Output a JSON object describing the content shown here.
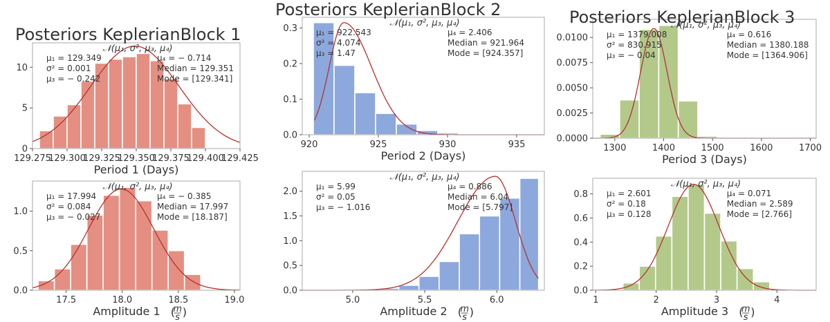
{
  "colors": {
    "red": "#e48f82",
    "blue": "#8da8dc",
    "green": "#b3c98a",
    "curve": "#b5302f",
    "axis": "#aaaaaa"
  },
  "chart_data": [
    {
      "type": "bar",
      "title": "Posteriors KeplerianBlock 1",
      "xlabel": "Period 1 (Days)",
      "xlabel_unit": "",
      "color": "red",
      "xlim": [
        129.275,
        129.425
      ],
      "ylim": [
        0,
        13
      ],
      "xticks": [
        129.275,
        129.3,
        129.325,
        129.35,
        129.375,
        129.4,
        129.425
      ],
      "xtick_labels": [
        "129.275",
        "129.300",
        "129.325",
        "129.350",
        "129.375",
        "129.400",
        "129.425"
      ],
      "yticks": [
        0,
        5,
        10
      ],
      "ytick_labels": [
        "0",
        "5",
        "10"
      ],
      "bin_edges": [
        129.28,
        129.29,
        129.3,
        129.31,
        129.32,
        129.33,
        129.34,
        129.35,
        129.36,
        129.37,
        129.38,
        129.39,
        129.4
      ],
      "values": [
        2.2,
        4.0,
        5.4,
        8.3,
        10.5,
        11.0,
        11.3,
        11.7,
        10.8,
        8.6,
        5.5,
        2.6
      ],
      "curve": {
        "type": "gauss",
        "mu": 129.349,
        "sigma": 0.032,
        "peak": 12.6
      },
      "normal_label": "𝒩(μ₁, σ², μ₃, μ₄)",
      "stats_left": [
        "μ₁ = 129.349",
        "σ² = 0.001",
        "μ₃ = − 0.242"
      ],
      "stats_right": [
        "μ₄ = − 0.714",
        "Median = 129.351",
        "Mode = [129.341]"
      ]
    },
    {
      "type": "bar",
      "title": "Posteriors KeplerianBlock 2",
      "xlabel": "Period 2 (Days)",
      "xlabel_unit": "",
      "color": "blue",
      "xlim": [
        919.5,
        937
      ],
      "ylim": [
        0,
        0.33
      ],
      "xticks": [
        920,
        925,
        930,
        935
      ],
      "xtick_labels": [
        "920",
        "925",
        "930",
        "935"
      ],
      "yticks": [
        0,
        0.1,
        0.2,
        0.3
      ],
      "ytick_labels": [
        "0.0",
        "0.1",
        "0.2",
        "0.3"
      ],
      "bin_edges": [
        920.3,
        921.8,
        923.3,
        924.8,
        926.3,
        927.8,
        929.3,
        930.8
      ],
      "values": [
        0.315,
        0.195,
        0.118,
        0.06,
        0.03,
        0.012,
        0.005
      ],
      "curve": {
        "type": "skew",
        "mode": 922.5,
        "s_left": 1.05,
        "s_right": 2.0,
        "peak": 0.315
      },
      "normal_label": "𝒩(μ₁, σ², μ₃, μ₄)",
      "stats_left": [
        "μ₁ = 922.543",
        "σ² = 4.074",
        "μ₃ = 1.47"
      ],
      "stats_right": [
        "μ₄ = 2.406",
        "Median = 921.964",
        "Mode = [924.357]"
      ]
    },
    {
      "type": "bar",
      "title": "Posteriors KeplerianBlock 3",
      "xlabel": "Period 3 (Days)",
      "xlabel_unit": "",
      "color": "green",
      "xlim": [
        1255,
        1712
      ],
      "ylim": [
        0,
        0.0118
      ],
      "xticks": [
        1300,
        1400,
        1500,
        1600,
        1700
      ],
      "xtick_labels": [
        "1300",
        "1400",
        "1500",
        "1600",
        "1700"
      ],
      "yticks": [
        0,
        0.0025,
        0.005,
        0.0075,
        0.01
      ],
      "ytick_labels": [
        "0.0000",
        "0.0025",
        "0.0050",
        "0.0075",
        "0.0100"
      ],
      "bin_edges": [
        1270,
        1310,
        1350,
        1390,
        1430,
        1470,
        1510
      ],
      "values": [
        0.0004,
        0.0038,
        0.0108,
        0.0112,
        0.0037,
        0.0002
      ],
      "curve": {
        "type": "gauss",
        "mu": 1380,
        "sigma": 27,
        "peak": 0.0109
      },
      "normal_label": "𝒩(μ₁, σ², μ₃, μ₄)",
      "stats_left": [
        "μ₁ = 1379.008",
        "σ² = 830.915",
        "μ₃ = − 0.04"
      ],
      "stats_right": [
        "μ₄ = 0.616",
        "Median = 1380.188",
        "Mode = [1364.906]"
      ]
    },
    {
      "type": "bar",
      "title": "",
      "xlabel": "Amplitude 1",
      "xlabel_unit": "m/s",
      "color": "red",
      "xlim": [
        17.2,
        19.05
      ],
      "ylim": [
        0,
        1.38
      ],
      "xticks": [
        17.5,
        18.0,
        18.5,
        19.0
      ],
      "xtick_labels": [
        "17.5",
        "18.0",
        "18.5",
        "19.0"
      ],
      "yticks": [
        0,
        0.5,
        1.0
      ],
      "ytick_labels": [
        "0.0",
        "0.5",
        "1.0"
      ],
      "bin_edges": [
        17.25,
        17.395,
        17.54,
        17.685,
        17.83,
        17.975,
        18.12,
        18.265,
        18.41,
        18.555,
        18.7
      ],
      "values": [
        0.12,
        0.27,
        0.58,
        0.95,
        1.2,
        1.3,
        1.13,
        0.76,
        0.5,
        0.2
      ],
      "curve": {
        "type": "gauss",
        "mu": 17.99,
        "sigma": 0.29,
        "peak": 1.28
      },
      "normal_label": "𝒩(μ₁, σ², μ₃, μ₄)",
      "stats_left": [
        "μ₁ = 17.994",
        "σ² = 0.084",
        "μ₃ = − 0.027"
      ],
      "stats_right": [
        "μ₄ = − 0.385",
        "Median = 17.997",
        "Mode = [18.187]"
      ]
    },
    {
      "type": "bar",
      "title": "",
      "xlabel": "Amplitude 2",
      "xlabel_unit": "m/s",
      "color": "blue",
      "xlim": [
        4.65,
        6.33
      ],
      "ylim": [
        0,
        2.4
      ],
      "xticks": [
        5.0,
        5.5,
        6.0
      ],
      "xtick_labels": [
        "5.0",
        "5.5",
        "6.0"
      ],
      "yticks": [
        0,
        0.5,
        1.0,
        1.5,
        2.0
      ],
      "ytick_labels": [
        "0.0",
        "0.5",
        "1.0",
        "1.5",
        "2.0"
      ],
      "bin_edges": [
        4.9,
        5.04,
        5.18,
        5.32,
        5.46,
        5.6,
        5.74,
        5.88,
        6.02,
        6.16,
        6.29
      ],
      "values": [
        0.01,
        0.02,
        0.04,
        0.1,
        0.28,
        0.58,
        1.14,
        1.5,
        1.86,
        2.26
      ],
      "curve": {
        "type": "skew",
        "mode": 5.99,
        "s_left": 0.26,
        "s_right": 0.14,
        "peak": 2.3
      },
      "normal_label": "𝒩(μ₁, σ², μ₃, μ₄)",
      "stats_left": [
        "μ₁ = 5.99",
        "σ² = 0.05",
        "μ₃ = − 1.016"
      ],
      "stats_right": [
        "μ₄ = 0.886",
        "Median = 6.04",
        "Mode = [5.797]"
      ]
    },
    {
      "type": "bar",
      "title": "",
      "xlabel": "Amplitude 3",
      "xlabel_unit": "m/s",
      "color": "green",
      "xlim": [
        0.95,
        4.65
      ],
      "ylim": [
        0,
        0.93
      ],
      "xticks": [
        1,
        2,
        3,
        4
      ],
      "xtick_labels": [
        "1",
        "2",
        "3",
        "4"
      ],
      "yticks": [
        0,
        0.2,
        0.4,
        0.6,
        0.8
      ],
      "ytick_labels": [
        "0.0",
        "0.2",
        "0.4",
        "0.6",
        "0.8"
      ],
      "bin_edges": [
        1.45,
        1.72,
        1.99,
        2.26,
        2.53,
        2.8,
        3.07,
        3.34,
        3.61,
        3.88
      ],
      "values": [
        0.06,
        0.2,
        0.45,
        0.78,
        0.88,
        0.64,
        0.41,
        0.18,
        0.07
      ],
      "curve": {
        "type": "gauss",
        "mu": 2.62,
        "sigma": 0.42,
        "peak": 0.88
      },
      "normal_label": "𝒩(μ₁, σ², μ₃, μ₄)",
      "stats_left": [
        "μ₁ = 2.601",
        "σ² = 0.18",
        "μ₃ = 0.128"
      ],
      "stats_right": [
        "μ₄ = 0.071",
        "Median = 2.589",
        "Mode = [2.766]"
      ]
    }
  ]
}
